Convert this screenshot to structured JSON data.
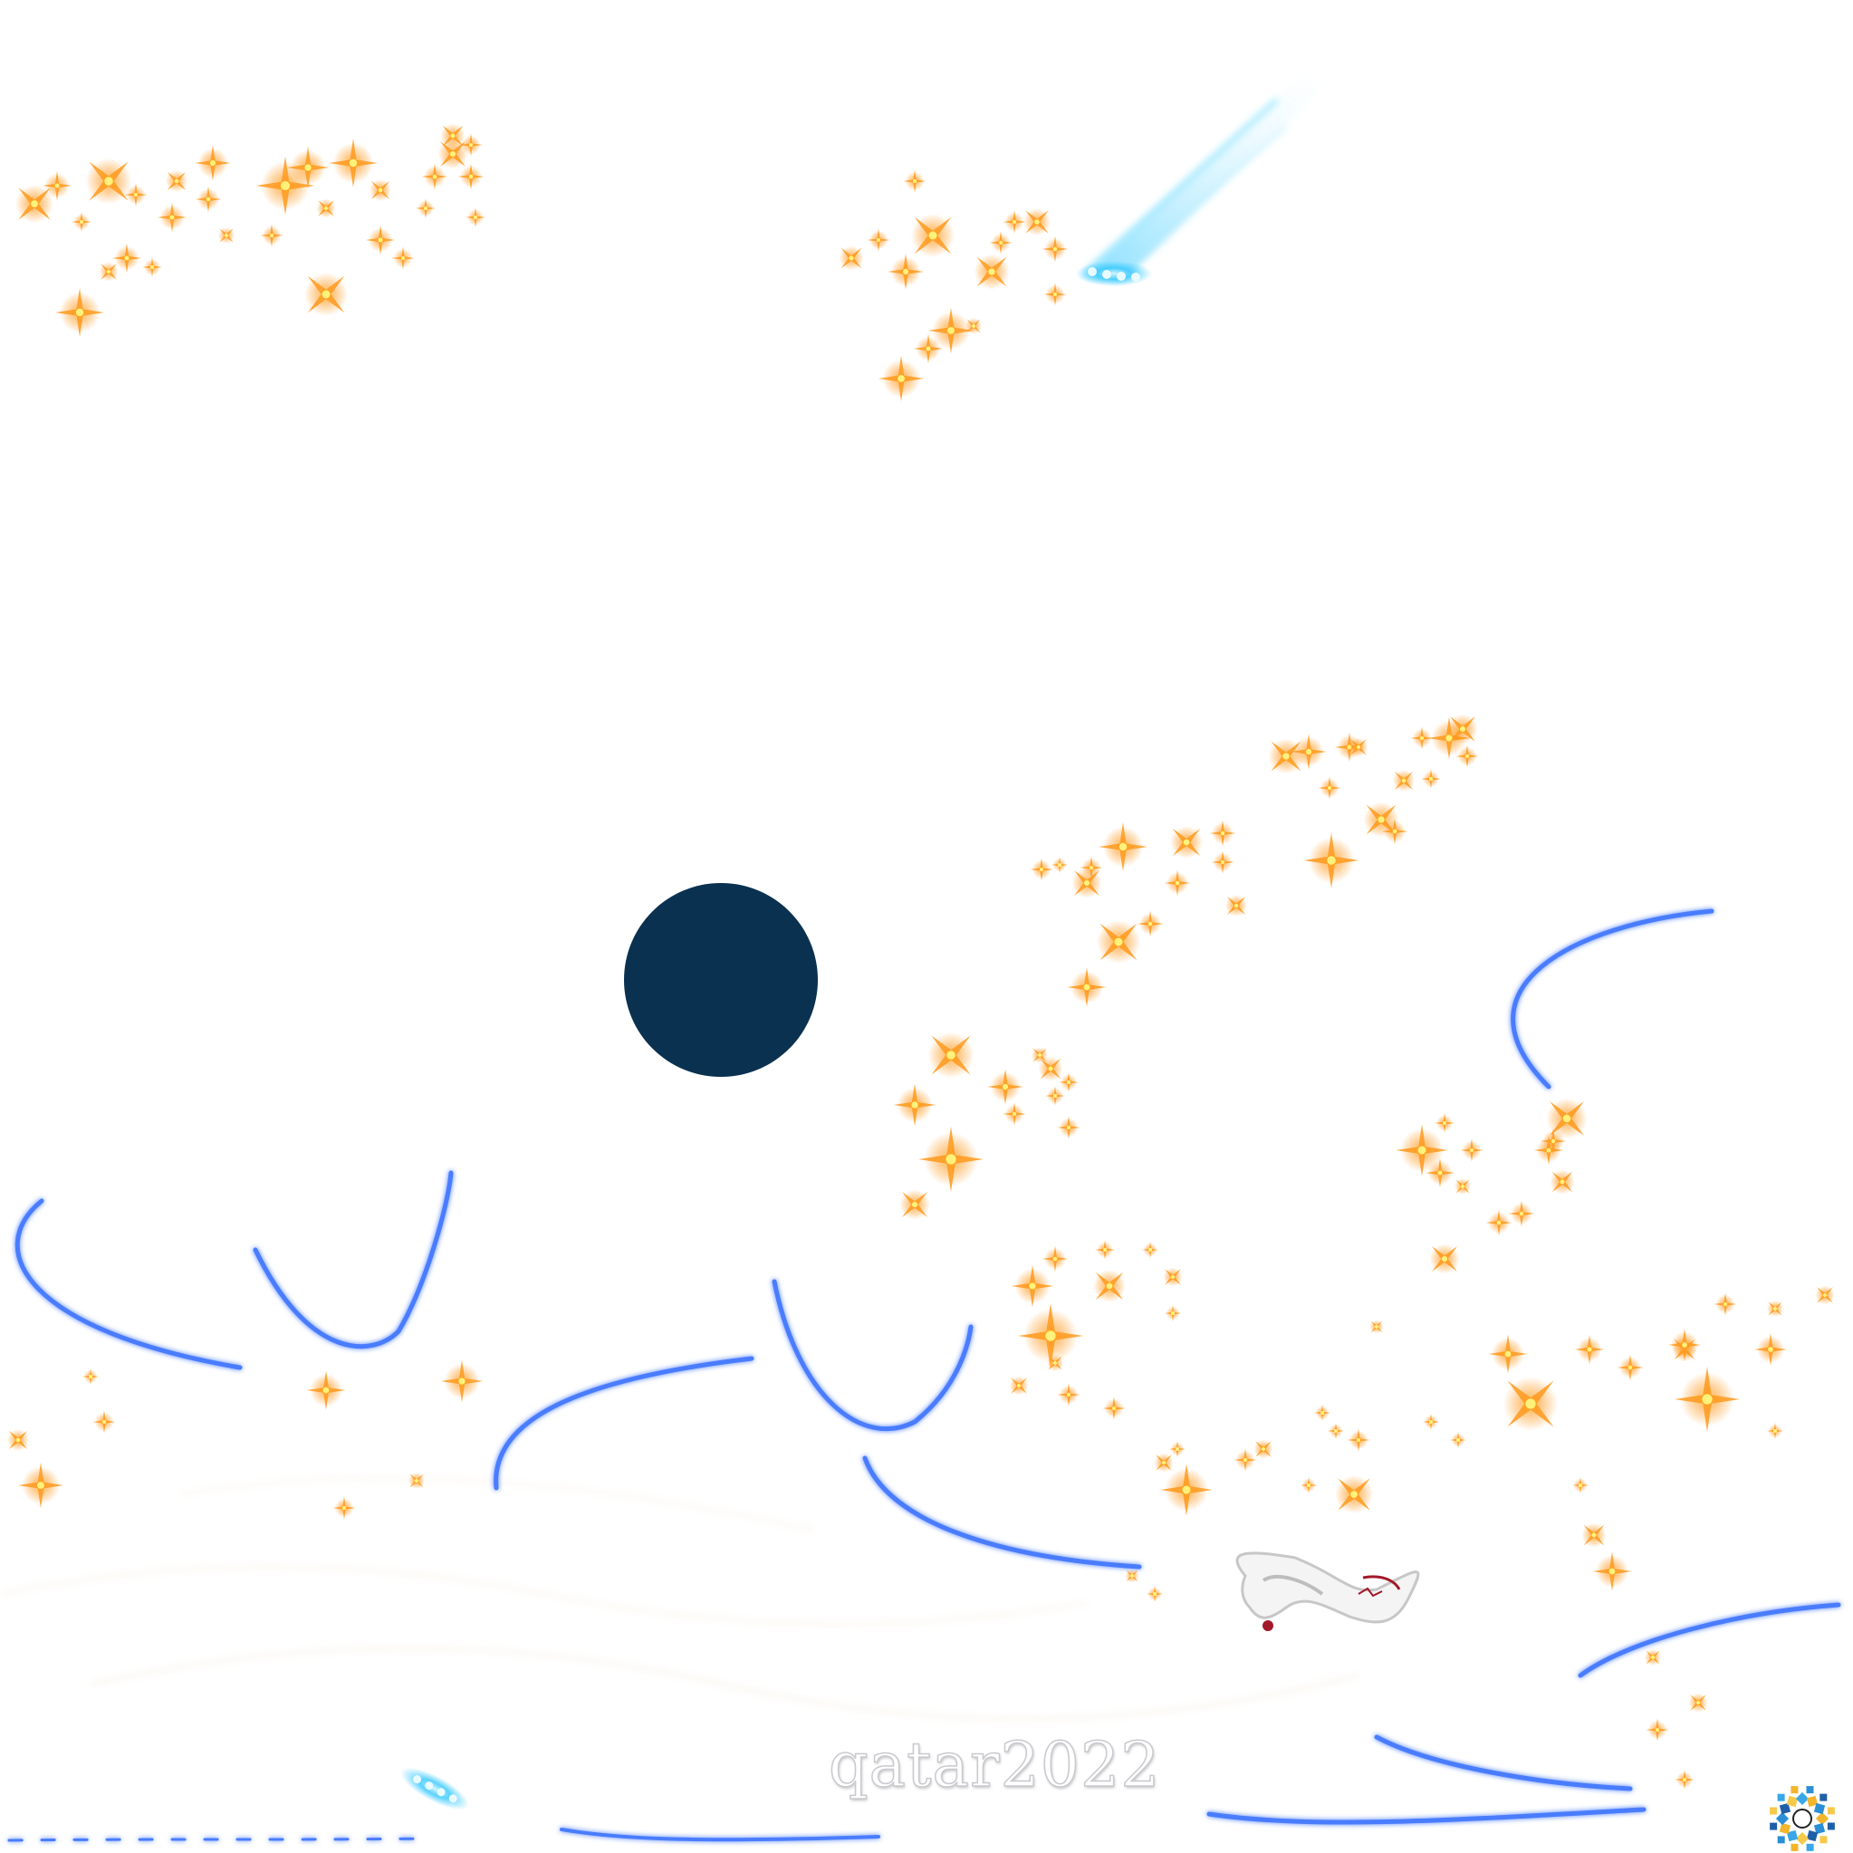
{
  "brand": {
    "wordmark": "qatar2022"
  },
  "colors": {
    "background": "#ffffff",
    "dark_circle": "#0a3150",
    "sparkle_core": "#fff27a",
    "sparkle_glow": "#ff9a1f",
    "neon_blue": "#4a7cff",
    "cyan_glow": "#34c8ff",
    "ribbon_red": "#a3182a"
  },
  "icons": [
    "sparkle-icon",
    "comet-icon",
    "infinity-ball-icon",
    "emblem-icon"
  ]
}
